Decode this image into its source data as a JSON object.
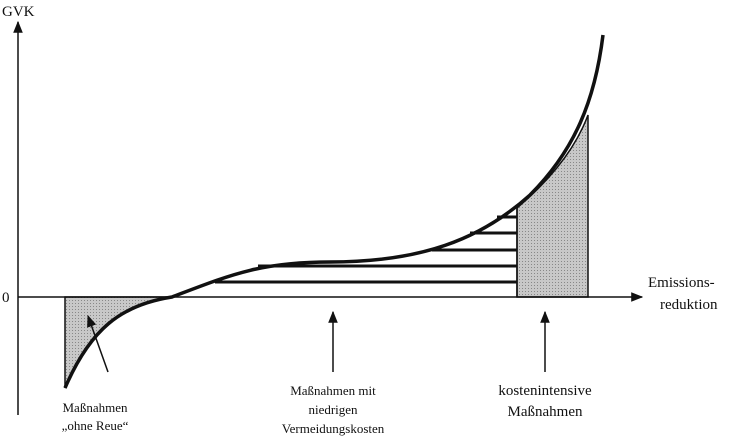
{
  "axes": {
    "y_label": "GVK",
    "origin": "0",
    "x_label": [
      "Emissions-",
      "reduktion"
    ]
  },
  "labels": [
    {
      "lines": [
        "Maßnahmen",
        "„ohne Reue“"
      ]
    },
    {
      "lines": [
        "Maßnahmen mit",
        "niedrigen",
        "Vermeidungskosten"
      ]
    },
    {
      "lines": [
        "kostenintensive",
        "Maßnahmen"
      ]
    }
  ]
}
